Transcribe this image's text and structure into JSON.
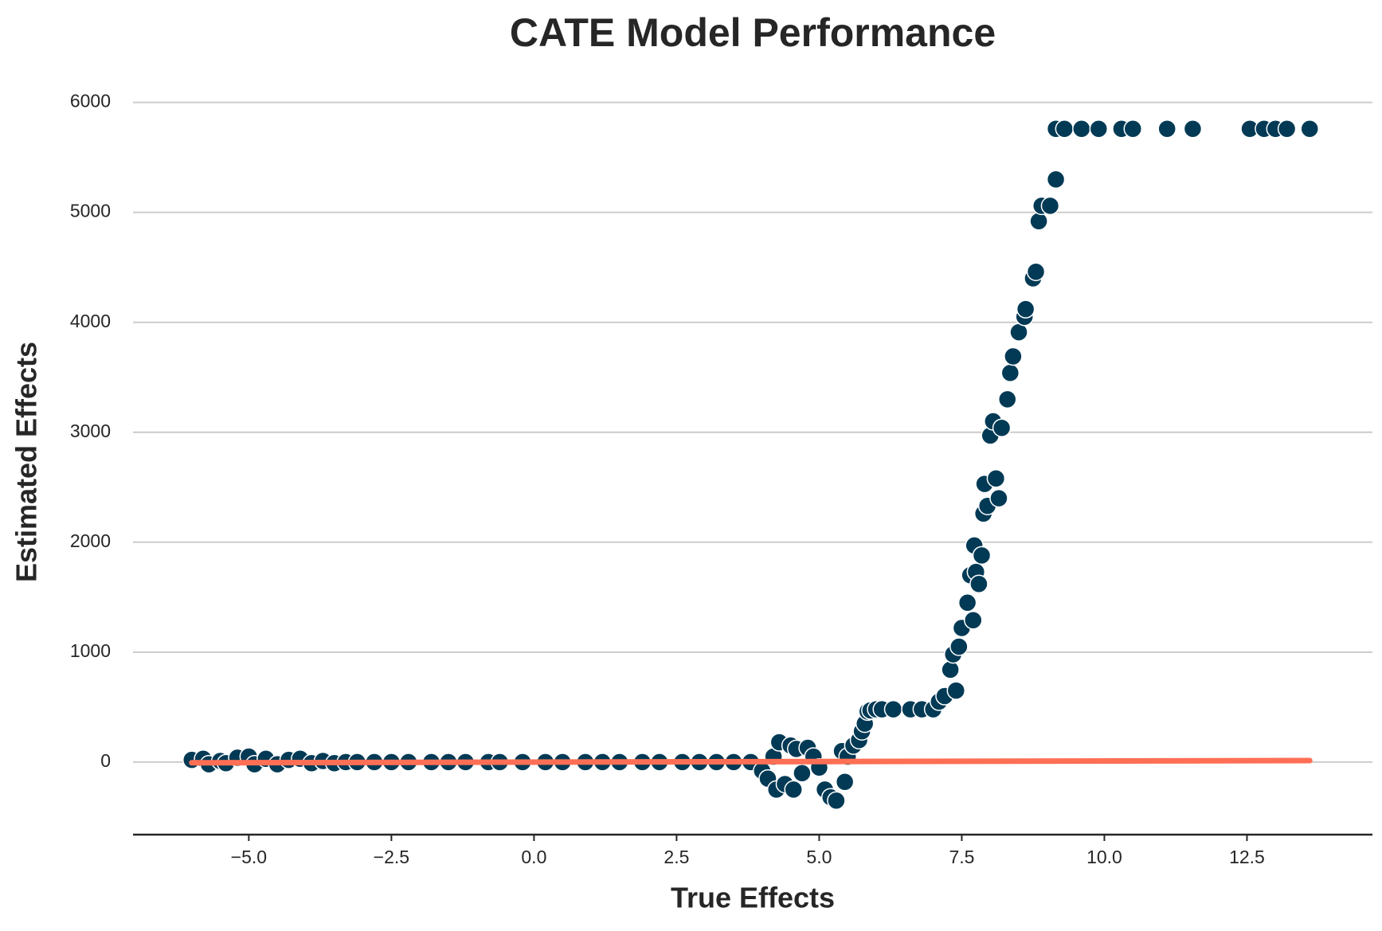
{
  "chart_data": {
    "type": "scatter",
    "title": "CATE Model Performance",
    "x_label": "True Effects",
    "y_label": "Estimated Effects",
    "xlim": [
      -7.03,
      14.7
    ],
    "ylim": [
      -660,
      6200
    ],
    "xticks": [
      {
        "value": -5,
        "label": "−5.0"
      },
      {
        "value": -2.5,
        "label": "−2.5"
      },
      {
        "value": 0,
        "label": "0.0"
      },
      {
        "value": 2.5,
        "label": "2.5"
      },
      {
        "value": 5,
        "label": "5.0"
      },
      {
        "value": 7.5,
        "label": "7.5"
      },
      {
        "value": 10,
        "label": "10.0"
      },
      {
        "value": 12.5,
        "label": "12.5"
      }
    ],
    "yticks": [
      0,
      1000,
      2000,
      3000,
      4000,
      5000,
      6000
    ],
    "grid": "y",
    "series": [
      {
        "kind": "points",
        "color": "#023a55",
        "x": [
          -6.0,
          -5.8,
          -5.7,
          -5.5,
          -5.4,
          -5.2,
          -5.0,
          -4.9,
          -4.7,
          -4.5,
          -4.3,
          -4.1,
          -3.9,
          -3.7,
          -3.5,
          -3.3,
          -3.1,
          -2.8,
          -2.5,
          -2.2,
          -1.8,
          -1.5,
          -1.2,
          -0.8,
          -0.6,
          -0.2,
          0.2,
          0.5,
          0.9,
          1.2,
          1.5,
          1.9,
          2.2,
          2.6,
          2.9,
          3.2,
          3.5,
          3.8,
          4.0,
          4.1,
          4.2,
          4.25,
          4.3,
          4.4,
          4.5,
          4.55,
          4.6,
          4.7,
          4.8,
          4.9,
          5.0,
          5.1,
          5.2,
          5.3,
          5.4,
          5.45,
          5.5,
          5.6,
          5.7,
          5.75,
          5.8,
          5.85,
          5.9,
          6.0,
          6.1,
          6.3,
          6.6,
          6.8,
          7.0,
          7.1,
          7.2,
          7.3,
          7.35,
          7.4,
          7.45,
          7.5,
          7.6,
          7.65,
          7.7,
          7.72,
          7.75,
          7.8,
          7.85,
          7.88,
          7.9,
          7.95,
          8.0,
          8.05,
          8.1,
          8.15,
          8.2,
          8.3,
          8.35,
          8.4,
          8.5,
          8.6,
          8.62,
          8.75,
          8.8,
          8.85,
          8.9,
          9.05,
          9.15,
          9.15,
          9.3,
          9.6,
          9.9,
          10.3,
          10.5,
          11.1,
          11.55,
          12.55,
          12.8,
          13.0,
          13.2,
          13.6
        ],
        "values": [
          20,
          30,
          -20,
          10,
          -10,
          40,
          50,
          -20,
          30,
          -20,
          20,
          30,
          -10,
          10,
          -10,
          0,
          0,
          0,
          0,
          0,
          0,
          0,
          0,
          0,
          0,
          0,
          0,
          0,
          0,
          0,
          0,
          0,
          0,
          0,
          0,
          0,
          0,
          0,
          -80,
          -150,
          50,
          -250,
          180,
          -200,
          150,
          -250,
          120,
          -100,
          130,
          50,
          -50,
          -250,
          -320,
          -350,
          100,
          -180,
          50,
          150,
          200,
          280,
          350,
          460,
          470,
          480,
          480,
          480,
          480,
          480,
          480,
          550,
          600,
          840,
          980,
          650,
          1050,
          1220,
          1450,
          1700,
          1290,
          1970,
          1730,
          1620,
          1880,
          2260,
          2530,
          2330,
          2970,
          3100,
          2580,
          2400,
          3040,
          3300,
          3540,
          3690,
          3910,
          4050,
          4120,
          4400,
          4460,
          4920,
          5060,
          5060,
          5300,
          5760,
          5760,
          5760,
          5760,
          5760,
          5760,
          5760,
          5760,
          5760,
          5760,
          5760,
          5760,
          5760
        ]
      },
      {
        "kind": "line",
        "color": "#ff6f55",
        "x": [
          -6.0,
          13.6
        ],
        "values": [
          -6.0,
          13.6
        ]
      }
    ]
  }
}
